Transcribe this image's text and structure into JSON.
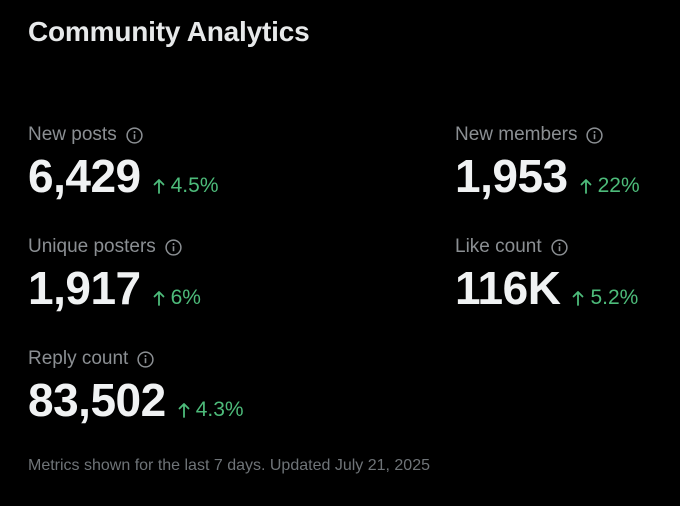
{
  "title": "Community Analytics",
  "metrics": {
    "new_posts": {
      "label": "New posts",
      "value": "6,429",
      "change": "4.5%"
    },
    "new_members": {
      "label": "New members",
      "value": "1,953",
      "change": "22%"
    },
    "unique_posters": {
      "label": "Unique posters",
      "value": "1,917",
      "change": "6%"
    },
    "like_count": {
      "label": "Like count",
      "value": "116K",
      "change": "5.2%"
    },
    "reply_count": {
      "label": "Reply count",
      "value": "83,502",
      "change": "4.3%"
    }
  },
  "footer": "Metrics shown for the last 7 days. Updated July 21, 2025",
  "colors": {
    "background": "#000000",
    "text_primary": "#e7e9ea",
    "text_secondary": "#8b8f93",
    "positive_change": "#4dbb7a"
  },
  "icons": {
    "info": "info-circle-icon",
    "change": "arrow-up-icon"
  }
}
